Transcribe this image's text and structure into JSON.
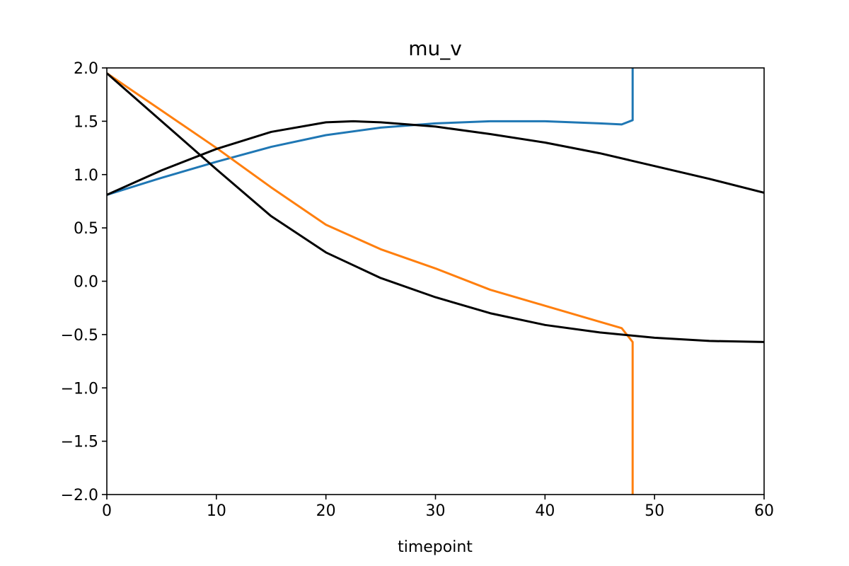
{
  "chart_data": {
    "type": "line",
    "title": "mu_v",
    "xlabel": "timepoint",
    "ylabel": "",
    "xlim": [
      0,
      60
    ],
    "ylim": [
      -2.0,
      2.0
    ],
    "xticks": [
      "0",
      "10",
      "20",
      "30",
      "40",
      "50",
      "60"
    ],
    "yticks": [
      "−2.0",
      "−1.5",
      "−1.0",
      "−0.5",
      "0.0",
      "0.5",
      "1.0",
      "1.5",
      "2.0"
    ],
    "grid": false,
    "series": [
      {
        "color": "#1f77b4",
        "x": [
          0,
          5,
          10,
          15,
          20,
          25,
          30,
          35,
          40,
          45,
          47,
          48,
          48
        ],
        "y": [
          0.81,
          0.97,
          1.12,
          1.26,
          1.37,
          1.44,
          1.48,
          1.5,
          1.5,
          1.48,
          1.47,
          1.51,
          2.0
        ]
      },
      {
        "color": "#ff7f0e",
        "x": [
          0,
          5,
          10,
          15,
          20,
          25,
          30,
          35,
          40,
          45,
          47,
          48,
          48
        ],
        "y": [
          1.95,
          1.6,
          1.25,
          0.88,
          0.53,
          0.3,
          0.12,
          -0.08,
          -0.23,
          -0.38,
          -0.44,
          -0.57,
          -2.0
        ]
      },
      {
        "color": "#000000",
        "x": [
          0,
          5,
          10,
          15,
          20,
          22.5,
          25,
          30,
          35,
          40,
          45,
          50,
          55,
          60
        ],
        "y": [
          0.81,
          1.04,
          1.24,
          1.4,
          1.49,
          1.5,
          1.49,
          1.45,
          1.38,
          1.3,
          1.2,
          1.08,
          0.96,
          0.83
        ]
      },
      {
        "color": "#000000",
        "x": [
          0,
          5,
          10,
          15,
          20,
          25,
          30,
          35,
          40,
          45,
          50,
          55,
          60
        ],
        "y": [
          1.95,
          1.5,
          1.05,
          0.61,
          0.27,
          0.03,
          -0.15,
          -0.3,
          -0.41,
          -0.48,
          -0.53,
          -0.56,
          -0.57
        ]
      }
    ]
  }
}
